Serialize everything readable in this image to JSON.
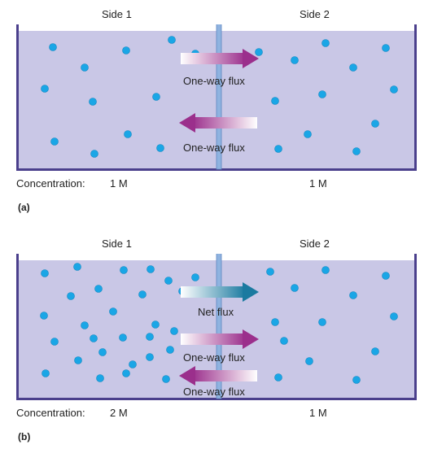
{
  "panel_a": {
    "side1": "Side 1",
    "side2": "Side 2",
    "flux_top": "One-way flux",
    "flux_bottom": "One-way flux",
    "concentration_label": "Concentration:",
    "conc_side1": "1 M",
    "conc_side2": "1 M",
    "letter": "(a)"
  },
  "panel_b": {
    "side1": "Side 1",
    "side2": "Side 2",
    "net_flux": "Net flux",
    "flux_top": "One-way flux",
    "flux_bottom": "One-way flux",
    "concentration_label": "Concentration:",
    "conc_side1": "2 M",
    "conc_side2": "1 M",
    "letter": "(b)"
  },
  "colors": {
    "solution": "#c9c7e6",
    "tank_wall": "#4a3f8c",
    "membrane": "#8fb3e0",
    "particle": "#1aa6e6",
    "oneway_arrow": "#9b2f8c",
    "net_arrow": "#1b7aa0"
  }
}
